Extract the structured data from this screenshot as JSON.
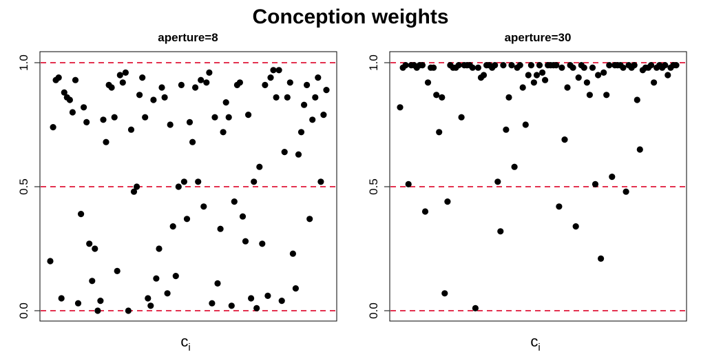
{
  "title": "Conception weights",
  "chart_data": [
    {
      "type": "scatter",
      "title": "aperture=8",
      "xlabel": "c",
      "xlabel_subscript": "i",
      "ylabel": "",
      "ylim": [
        0,
        1
      ],
      "yticks": [
        "0.0",
        "0.5",
        "1.0"
      ],
      "reference_lines": [
        0,
        0.5,
        1
      ],
      "reference_line_color": "#e3314f",
      "point_color": "#000000",
      "x_axis_ticks": false,
      "grid": false,
      "y": [
        0.2,
        0.74,
        0.93,
        0.94,
        0.05,
        0.88,
        0.86,
        0.85,
        0.8,
        0.93,
        0.03,
        0.39,
        0.82,
        0.76,
        0.27,
        0.12,
        0.25,
        0.0,
        0.04,
        0.77,
        0.68,
        0.91,
        0.9,
        0.78,
        0.16,
        0.95,
        0.92,
        0.96,
        0.0,
        0.73,
        0.48,
        0.5,
        0.87,
        0.94,
        0.78,
        0.05,
        0.02,
        0.85,
        0.13,
        0.25,
        0.9,
        0.86,
        0.07,
        0.75,
        0.34,
        0.14,
        0.5,
        0.91,
        0.52,
        0.37,
        0.76,
        0.68,
        0.9,
        0.52,
        0.93,
        0.42,
        0.92,
        0.96,
        0.03,
        0.78,
        0.11,
        0.33,
        0.72,
        0.84,
        0.78,
        0.02,
        0.44,
        0.91,
        0.92,
        0.38,
        0.28,
        0.79,
        0.05,
        0.52,
        0.01,
        0.58,
        0.27,
        0.91,
        0.06,
        0.94,
        0.97,
        0.86,
        0.97,
        0.04,
        0.64,
        0.86,
        0.92,
        0.23,
        0.09,
        0.63,
        0.72,
        0.83,
        0.91,
        0.37,
        0.77,
        0.86,
        0.94,
        0.52,
        0.79,
        0.89
      ]
    },
    {
      "type": "scatter",
      "title": "aperture=30",
      "xlabel": "c",
      "xlabel_subscript": "i",
      "ylabel": "",
      "ylim": [
        0,
        1
      ],
      "yticks": [
        "0.0",
        "0.5",
        "1.0"
      ],
      "reference_lines": [
        0,
        0.5,
        1
      ],
      "reference_line_color": "#e3314f",
      "point_color": "#000000",
      "x_axis_ticks": false,
      "grid": false,
      "y": [
        0.82,
        0.98,
        0.99,
        0.51,
        0.99,
        0.99,
        0.98,
        0.99,
        0.99,
        0.4,
        0.92,
        0.98,
        0.98,
        0.87,
        0.72,
        0.86,
        0.07,
        0.44,
        0.99,
        0.98,
        0.98,
        0.99,
        0.78,
        0.99,
        0.99,
        0.99,
        0.98,
        0.01,
        0.98,
        0.94,
        0.95,
        0.99,
        0.99,
        0.98,
        0.99,
        0.52,
        0.32,
        0.99,
        0.73,
        0.86,
        0.99,
        0.58,
        0.98,
        0.99,
        0.9,
        0.75,
        0.95,
        0.99,
        0.92,
        0.95,
        0.99,
        0.96,
        0.93,
        0.99,
        0.99,
        0.99,
        0.99,
        0.42,
        0.98,
        0.69,
        0.9,
        0.99,
        0.98,
        0.34,
        0.94,
        0.99,
        0.98,
        0.92,
        0.87,
        0.98,
        0.51,
        0.95,
        0.21,
        0.96,
        0.87,
        0.99,
        0.54,
        0.99,
        0.99,
        0.99,
        0.98,
        0.48,
        0.99,
        0.98,
        0.99,
        0.85,
        0.65,
        0.97,
        0.98,
        0.98,
        0.99,
        0.92,
        0.98,
        0.99,
        0.98,
        0.99,
        0.95,
        0.98,
        0.99,
        0.99
      ]
    }
  ]
}
